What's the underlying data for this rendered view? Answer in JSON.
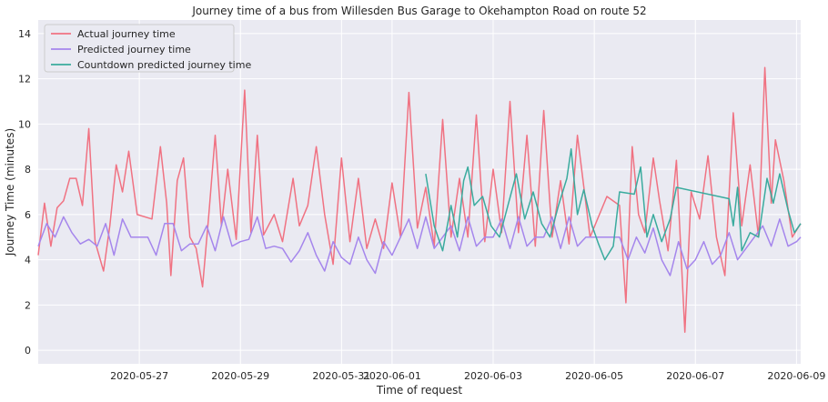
{
  "chart_data": {
    "type": "line",
    "title": "Journey time of a bus from Willesden Bus Garage to Okehampton Road on route 52",
    "xlabel": "Time of request",
    "ylabel": "Journey Time (minutes)",
    "x_range": [
      "2020-05-25T00:00",
      "2020-06-09T02:00"
    ],
    "ylim": [
      -0.6,
      14.6
    ],
    "x_ticks": [
      "2020-05-27",
      "2020-05-29",
      "2020-05-31",
      "2020-06-01",
      "2020-06-03",
      "2020-06-05",
      "2020-06-07",
      "2020-06-09"
    ],
    "y_ticks": [
      0,
      2,
      4,
      6,
      8,
      10,
      12,
      14
    ],
    "grid": true,
    "legend_position": "top-left",
    "series": [
      {
        "name": "Actual journey time",
        "color": "#f07282",
        "points": [
          [
            "2020-05-25T00:00",
            4.2
          ],
          [
            "2020-05-25T03:00",
            6.5
          ],
          [
            "2020-05-25T06:00",
            4.6
          ],
          [
            "2020-05-25T09:00",
            6.3
          ],
          [
            "2020-05-25T12:00",
            6.6
          ],
          [
            "2020-05-25T15:00",
            7.6
          ],
          [
            "2020-05-25T18:00",
            7.6
          ],
          [
            "2020-05-25T21:00",
            6.4
          ],
          [
            "2020-05-26T00:00",
            9.8
          ],
          [
            "2020-05-26T03:00",
            4.8
          ],
          [
            "2020-05-26T07:00",
            3.5
          ],
          [
            "2020-05-26T10:00",
            5.5
          ],
          [
            "2020-05-26T13:00",
            8.2
          ],
          [
            "2020-05-26T16:00",
            7.0
          ],
          [
            "2020-05-26T19:00",
            8.8
          ],
          [
            "2020-05-26T23:00",
            6.0
          ],
          [
            "2020-05-27T06:00",
            5.8
          ],
          [
            "2020-05-27T10:00",
            9.0
          ],
          [
            "2020-05-27T13:00",
            6.5
          ],
          [
            "2020-05-27T15:00",
            3.3
          ],
          [
            "2020-05-27T18:00",
            7.5
          ],
          [
            "2020-05-27T21:00",
            8.5
          ],
          [
            "2020-05-28T00:00",
            5.0
          ],
          [
            "2020-05-28T03:00",
            4.5
          ],
          [
            "2020-05-28T06:00",
            2.8
          ],
          [
            "2020-05-28T09:00",
            6.0
          ],
          [
            "2020-05-28T12:00",
            9.5
          ],
          [
            "2020-05-28T15:00",
            5.5
          ],
          [
            "2020-05-28T18:00",
            8.0
          ],
          [
            "2020-05-28T22:00",
            4.9
          ],
          [
            "2020-05-29T02:00",
            11.5
          ],
          [
            "2020-05-29T05:00",
            5.2
          ],
          [
            "2020-05-29T08:00",
            9.5
          ],
          [
            "2020-05-29T11:00",
            5.1
          ],
          [
            "2020-05-29T16:00",
            6.0
          ],
          [
            "2020-05-29T20:00",
            4.8
          ],
          [
            "2020-05-30T01:00",
            7.6
          ],
          [
            "2020-05-30T04:00",
            5.5
          ],
          [
            "2020-05-30T08:00",
            6.4
          ],
          [
            "2020-05-30T12:00",
            9.0
          ],
          [
            "2020-05-30T16:00",
            6.0
          ],
          [
            "2020-05-30T20:00",
            3.8
          ],
          [
            "2020-05-31T00:00",
            8.5
          ],
          [
            "2020-05-31T04:00",
            4.8
          ],
          [
            "2020-05-31T08:00",
            7.6
          ],
          [
            "2020-05-31T12:00",
            4.5
          ],
          [
            "2020-05-31T16:00",
            5.8
          ],
          [
            "2020-05-31T20:00",
            4.5
          ],
          [
            "2020-06-01T00:00",
            7.4
          ],
          [
            "2020-06-01T04:00",
            5.0
          ],
          [
            "2020-06-01T08:00",
            11.4
          ],
          [
            "2020-06-01T12:00",
            5.4
          ],
          [
            "2020-06-01T16:00",
            7.2
          ],
          [
            "2020-06-01T20:00",
            4.6
          ],
          [
            "2020-06-02T00:00",
            10.2
          ],
          [
            "2020-06-02T04:00",
            5.0
          ],
          [
            "2020-06-02T08:00",
            7.6
          ],
          [
            "2020-06-02T12:00",
            5.0
          ],
          [
            "2020-06-02T16:00",
            10.4
          ],
          [
            "2020-06-02T20:00",
            4.8
          ],
          [
            "2020-06-03T00:00",
            8.0
          ],
          [
            "2020-06-03T04:00",
            5.2
          ],
          [
            "2020-06-03T08:00",
            11.0
          ],
          [
            "2020-06-03T12:00",
            5.2
          ],
          [
            "2020-06-03T16:00",
            9.5
          ],
          [
            "2020-06-03T20:00",
            4.6
          ],
          [
            "2020-06-04T00:00",
            10.6
          ],
          [
            "2020-06-04T04:00",
            5.0
          ],
          [
            "2020-06-04T08:00",
            7.5
          ],
          [
            "2020-06-04T12:00",
            4.7
          ],
          [
            "2020-06-04T16:00",
            9.5
          ],
          [
            "2020-06-04T22:00",
            5.0
          ],
          [
            "2020-06-05T06:00",
            6.8
          ],
          [
            "2020-06-05T12:00",
            6.4
          ],
          [
            "2020-06-05T15:00",
            2.1
          ],
          [
            "2020-06-05T18:00",
            9.0
          ],
          [
            "2020-06-05T21:00",
            6.0
          ],
          [
            "2020-06-06T00:00",
            5.2
          ],
          [
            "2020-06-06T04:00",
            8.5
          ],
          [
            "2020-06-06T07:00",
            6.6
          ],
          [
            "2020-06-06T11:00",
            4.4
          ],
          [
            "2020-06-06T15:00",
            8.4
          ],
          [
            "2020-06-06T19:00",
            0.8
          ],
          [
            "2020-06-06T22:00",
            7.0
          ],
          [
            "2020-06-07T02:00",
            5.8
          ],
          [
            "2020-06-07T06:00",
            8.6
          ],
          [
            "2020-06-07T10:00",
            5.0
          ],
          [
            "2020-06-07T14:00",
            3.3
          ],
          [
            "2020-06-07T18:00",
            10.5
          ],
          [
            "2020-06-07T22:00",
            5.5
          ],
          [
            "2020-06-08T02:00",
            8.2
          ],
          [
            "2020-06-08T06:00",
            5.0
          ],
          [
            "2020-06-08T09:00",
            12.5
          ],
          [
            "2020-06-08T12:00",
            6.5
          ],
          [
            "2020-06-08T14:00",
            9.3
          ],
          [
            "2020-06-08T18:00",
            7.5
          ],
          [
            "2020-06-08T22:00",
            5.0
          ],
          [
            "2020-06-09T02:00",
            5.6
          ]
        ]
      },
      {
        "name": "Predicted journey time",
        "color": "#a586ec",
        "points": [
          [
            "2020-05-25T00:00",
            4.6
          ],
          [
            "2020-05-25T04:00",
            5.6
          ],
          [
            "2020-05-25T08:00",
            5.0
          ],
          [
            "2020-05-25T12:00",
            5.9
          ],
          [
            "2020-05-25T16:00",
            5.2
          ],
          [
            "2020-05-25T20:00",
            4.7
          ],
          [
            "2020-05-26T00:00",
            4.9
          ],
          [
            "2020-05-26T04:00",
            4.6
          ],
          [
            "2020-05-26T08:00",
            5.6
          ],
          [
            "2020-05-26T12:00",
            4.2
          ],
          [
            "2020-05-26T16:00",
            5.8
          ],
          [
            "2020-05-26T20:00",
            5.0
          ],
          [
            "2020-05-27T04:00",
            5.0
          ],
          [
            "2020-05-27T08:00",
            4.2
          ],
          [
            "2020-05-27T12:00",
            5.6
          ],
          [
            "2020-05-27T16:00",
            5.6
          ],
          [
            "2020-05-27T20:00",
            4.4
          ],
          [
            "2020-05-28T00:00",
            4.7
          ],
          [
            "2020-05-28T04:00",
            4.7
          ],
          [
            "2020-05-28T08:00",
            5.5
          ],
          [
            "2020-05-28T12:00",
            4.4
          ],
          [
            "2020-05-28T16:00",
            5.9
          ],
          [
            "2020-05-28T20:00",
            4.6
          ],
          [
            "2020-05-29T00:00",
            4.8
          ],
          [
            "2020-05-29T04:00",
            4.9
          ],
          [
            "2020-05-29T08:00",
            5.9
          ],
          [
            "2020-05-29T12:00",
            4.5
          ],
          [
            "2020-05-29T16:00",
            4.6
          ],
          [
            "2020-05-29T20:00",
            4.5
          ],
          [
            "2020-05-30T00:00",
            3.9
          ],
          [
            "2020-05-30T04:00",
            4.4
          ],
          [
            "2020-05-30T08:00",
            5.2
          ],
          [
            "2020-05-30T12:00",
            4.2
          ],
          [
            "2020-05-30T16:00",
            3.5
          ],
          [
            "2020-05-30T20:00",
            4.8
          ],
          [
            "2020-05-31T00:00",
            4.1
          ],
          [
            "2020-05-31T04:00",
            3.8
          ],
          [
            "2020-05-31T08:00",
            5.0
          ],
          [
            "2020-05-31T12:00",
            4.0
          ],
          [
            "2020-05-31T16:00",
            3.4
          ],
          [
            "2020-05-31T20:00",
            4.8
          ],
          [
            "2020-06-01T00:00",
            4.2
          ],
          [
            "2020-06-01T04:00",
            5.0
          ],
          [
            "2020-06-01T08:00",
            5.8
          ],
          [
            "2020-06-01T12:00",
            4.5
          ],
          [
            "2020-06-01T16:00",
            5.9
          ],
          [
            "2020-06-01T20:00",
            4.5
          ],
          [
            "2020-06-02T00:00",
            5.0
          ],
          [
            "2020-06-02T04:00",
            5.5
          ],
          [
            "2020-06-02T08:00",
            4.4
          ],
          [
            "2020-06-02T12:00",
            5.9
          ],
          [
            "2020-06-02T16:00",
            4.6
          ],
          [
            "2020-06-02T20:00",
            5.0
          ],
          [
            "2020-06-03T00:00",
            5.0
          ],
          [
            "2020-06-03T04:00",
            5.8
          ],
          [
            "2020-06-03T08:00",
            4.5
          ],
          [
            "2020-06-03T12:00",
            5.9
          ],
          [
            "2020-06-03T16:00",
            4.6
          ],
          [
            "2020-06-03T20:00",
            5.0
          ],
          [
            "2020-06-04T00:00",
            5.0
          ],
          [
            "2020-06-04T04:00",
            5.9
          ],
          [
            "2020-06-04T08:00",
            4.5
          ],
          [
            "2020-06-04T12:00",
            5.9
          ],
          [
            "2020-06-04T16:00",
            4.6
          ],
          [
            "2020-06-04T20:00",
            5.0
          ],
          [
            "2020-06-05T00:00",
            5.0
          ],
          [
            "2020-06-05T06:00",
            5.0
          ],
          [
            "2020-06-05T12:00",
            5.0
          ],
          [
            "2020-06-05T16:00",
            4.0
          ],
          [
            "2020-06-05T20:00",
            5.0
          ],
          [
            "2020-06-06T00:00",
            4.3
          ],
          [
            "2020-06-06T04:00",
            5.4
          ],
          [
            "2020-06-06T08:00",
            4.0
          ],
          [
            "2020-06-06T12:00",
            3.3
          ],
          [
            "2020-06-06T16:00",
            4.8
          ],
          [
            "2020-06-06T20:00",
            3.6
          ],
          [
            "2020-06-07T00:00",
            4.0
          ],
          [
            "2020-06-07T04:00",
            4.8
          ],
          [
            "2020-06-07T08:00",
            3.8
          ],
          [
            "2020-06-07T12:00",
            4.2
          ],
          [
            "2020-06-07T16:00",
            5.2
          ],
          [
            "2020-06-07T20:00",
            4.0
          ],
          [
            "2020-06-08T00:00",
            4.5
          ],
          [
            "2020-06-08T04:00",
            5.0
          ],
          [
            "2020-06-08T08:00",
            5.5
          ],
          [
            "2020-06-08T12:00",
            4.6
          ],
          [
            "2020-06-08T16:00",
            5.8
          ],
          [
            "2020-06-08T20:00",
            4.6
          ],
          [
            "2020-06-09T00:00",
            4.8
          ],
          [
            "2020-06-09T02:00",
            5.0
          ]
        ]
      },
      {
        "name": "Countdown predicted journey time",
        "color": "#3aab9e",
        "points": [
          [
            "2020-06-01T16:00",
            7.8
          ],
          [
            "2020-06-01T20:00",
            5.5
          ],
          [
            "2020-06-02T00:00",
            4.4
          ],
          [
            "2020-06-02T04:00",
            6.4
          ],
          [
            "2020-06-02T07:00",
            5.0
          ],
          [
            "2020-06-02T10:00",
            7.5
          ],
          [
            "2020-06-02T12:00",
            8.1
          ],
          [
            "2020-06-02T15:00",
            6.4
          ],
          [
            "2020-06-02T19:00",
            6.8
          ],
          [
            "2020-06-02T23:00",
            5.5
          ],
          [
            "2020-06-03T03:00",
            5.0
          ],
          [
            "2020-06-03T07:00",
            6.4
          ],
          [
            "2020-06-03T11:00",
            7.8
          ],
          [
            "2020-06-03T15:00",
            5.8
          ],
          [
            "2020-06-03T19:00",
            7.0
          ],
          [
            "2020-06-03T23:00",
            5.6
          ],
          [
            "2020-06-04T03:00",
            5.0
          ],
          [
            "2020-06-04T07:00",
            6.4
          ],
          [
            "2020-06-04T11:00",
            7.6
          ],
          [
            "2020-06-04T13:00",
            8.9
          ],
          [
            "2020-06-04T16:00",
            6.0
          ],
          [
            "2020-06-04T19:00",
            7.1
          ],
          [
            "2020-06-04T23:00",
            5.5
          ],
          [
            "2020-06-05T02:00",
            4.7
          ],
          [
            "2020-06-05T05:00",
            4.0
          ],
          [
            "2020-06-05T09:00",
            4.6
          ],
          [
            "2020-06-05T12:00",
            7.0
          ],
          [
            "2020-06-05T19:00",
            6.9
          ],
          [
            "2020-06-05T22:00",
            8.1
          ],
          [
            "2020-06-06T01:00",
            5.0
          ],
          [
            "2020-06-06T04:00",
            6.0
          ],
          [
            "2020-06-06T08:00",
            4.8
          ],
          [
            "2020-06-06T12:00",
            5.8
          ],
          [
            "2020-06-06T15:00",
            7.2
          ],
          [
            "2020-06-07T16:00",
            6.7
          ],
          [
            "2020-06-07T18:00",
            5.5
          ],
          [
            "2020-06-07T20:00",
            7.2
          ],
          [
            "2020-06-07T22:00",
            4.4
          ],
          [
            "2020-06-08T02:00",
            5.2
          ],
          [
            "2020-06-08T06:00",
            5.0
          ],
          [
            "2020-06-08T10:00",
            7.6
          ],
          [
            "2020-06-08T13:00",
            6.5
          ],
          [
            "2020-06-08T16:00",
            7.8
          ],
          [
            "2020-06-08T20:00",
            6.2
          ],
          [
            "2020-06-08T23:00",
            5.2
          ],
          [
            "2020-06-09T02:00",
            5.6
          ]
        ]
      }
    ]
  }
}
